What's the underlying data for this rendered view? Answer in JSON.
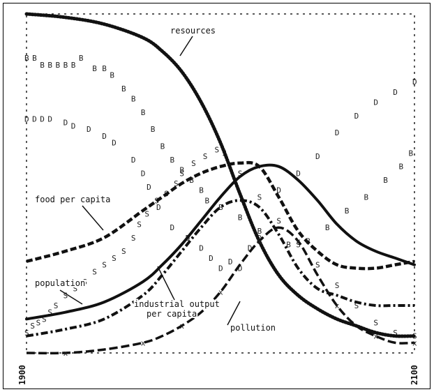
{
  "chart_data": {
    "type": "line",
    "title": "",
    "xlabel": "",
    "ylabel": "",
    "xlim": [
      1900,
      2100
    ],
    "ylim": [
      0,
      1
    ],
    "grid": false,
    "x_ticks": [
      "1900",
      "2100"
    ],
    "x": [
      1900,
      1920,
      1940,
      1960,
      1970,
      1980,
      1990,
      2000,
      2010,
      2020,
      2030,
      2040,
      2050,
      2060,
      2070,
      2080,
      2090,
      2100
    ],
    "series": [
      {
        "name": "resources",
        "style": "dotted",
        "values": [
          1.0,
          0.99,
          0.97,
          0.93,
          0.89,
          0.83,
          0.74,
          0.62,
          0.47,
          0.33,
          0.23,
          0.17,
          0.13,
          0.1,
          0.08,
          0.06,
          0.05,
          0.05
        ]
      },
      {
        "name": "food per capita",
        "style": "dashed",
        "values": [
          0.27,
          0.3,
          0.34,
          0.42,
          0.46,
          0.5,
          0.53,
          0.55,
          0.56,
          0.55,
          0.46,
          0.36,
          0.3,
          0.26,
          0.25,
          0.25,
          0.26,
          0.27
        ]
      },
      {
        "name": "population",
        "style": "solid",
        "values": [
          0.1,
          0.12,
          0.15,
          0.21,
          0.26,
          0.32,
          0.39,
          0.46,
          0.52,
          0.55,
          0.55,
          0.51,
          0.45,
          0.38,
          0.33,
          0.3,
          0.28,
          0.26
        ]
      },
      {
        "name": "industrial output per capita",
        "style": "dash-dot",
        "values": [
          0.05,
          0.07,
          0.1,
          0.17,
          0.23,
          0.3,
          0.37,
          0.43,
          0.45,
          0.43,
          0.35,
          0.25,
          0.19,
          0.17,
          0.15,
          0.14,
          0.14,
          0.14
        ]
      },
      {
        "name": "pollution",
        "style": "dash-x",
        "values": [
          0.0,
          0.0,
          0.01,
          0.03,
          0.05,
          0.08,
          0.12,
          0.18,
          0.26,
          0.33,
          0.37,
          0.33,
          0.23,
          0.14,
          0.08,
          0.05,
          0.03,
          0.03
        ]
      }
    ],
    "marker_series": [
      {
        "letter": "B",
        "points": [
          [
            1900,
            0.87
          ],
          [
            1904,
            0.87
          ],
          [
            1908,
            0.85
          ],
          [
            1912,
            0.85
          ],
          [
            1916,
            0.85
          ],
          [
            1920,
            0.85
          ],
          [
            1924,
            0.85
          ],
          [
            1928,
            0.87
          ],
          [
            1935,
            0.84
          ],
          [
            1940,
            0.84
          ],
          [
            1944,
            0.82
          ],
          [
            1950,
            0.78
          ],
          [
            1955,
            0.75
          ],
          [
            1960,
            0.71
          ],
          [
            1965,
            0.66
          ],
          [
            1970,
            0.61
          ],
          [
            1975,
            0.57
          ],
          [
            1980,
            0.54
          ],
          [
            1985,
            0.51
          ],
          [
            1990,
            0.48
          ],
          [
            1993,
            0.45
          ],
          [
            2000,
            0.43
          ],
          [
            2010,
            0.4
          ],
          [
            2020,
            0.36
          ],
          [
            2035,
            0.32
          ],
          [
            2045,
            0.33
          ],
          [
            2055,
            0.37
          ],
          [
            2065,
            0.42
          ],
          [
            2075,
            0.46
          ],
          [
            2085,
            0.51
          ],
          [
            2093,
            0.55
          ],
          [
            2098,
            0.59
          ]
        ]
      },
      {
        "letter": "D",
        "points": [
          [
            1900,
            0.69
          ],
          [
            1904,
            0.69
          ],
          [
            1908,
            0.69
          ],
          [
            1912,
            0.69
          ],
          [
            1920,
            0.68
          ],
          [
            1924,
            0.67
          ],
          [
            1932,
            0.66
          ],
          [
            1940,
            0.64
          ],
          [
            1945,
            0.62
          ],
          [
            1955,
            0.57
          ],
          [
            1960,
            0.53
          ],
          [
            1963,
            0.49
          ],
          [
            1968,
            0.43
          ],
          [
            1975,
            0.37
          ],
          [
            1983,
            0.34
          ],
          [
            1990,
            0.31
          ],
          [
            1995,
            0.28
          ],
          [
            2000,
            0.25
          ],
          [
            2005,
            0.27
          ],
          [
            2010,
            0.25
          ],
          [
            2015,
            0.31
          ],
          [
            2020,
            0.34
          ],
          [
            2030,
            0.48
          ],
          [
            2040,
            0.53
          ],
          [
            2050,
            0.58
          ],
          [
            2060,
            0.65
          ],
          [
            2070,
            0.7
          ],
          [
            2080,
            0.74
          ],
          [
            2090,
            0.77
          ],
          [
            2100,
            0.8
          ]
        ]
      },
      {
        "letter": "S",
        "points": [
          [
            1900,
            0.06
          ],
          [
            1903,
            0.08
          ],
          [
            1906,
            0.09
          ],
          [
            1909,
            0.1
          ],
          [
            1912,
            0.12
          ],
          [
            1915,
            0.14
          ],
          [
            1920,
            0.17
          ],
          [
            1925,
            0.19
          ],
          [
            1930,
            0.21
          ],
          [
            1935,
            0.24
          ],
          [
            1940,
            0.26
          ],
          [
            1945,
            0.28
          ],
          [
            1950,
            0.3
          ],
          [
            1955,
            0.34
          ],
          [
            1958,
            0.38
          ],
          [
            1962,
            0.41
          ],
          [
            1967,
            0.45
          ],
          [
            1972,
            0.47
          ],
          [
            1977,
            0.5
          ],
          [
            1980,
            0.53
          ],
          [
            1986,
            0.56
          ],
          [
            1992,
            0.58
          ],
          [
            1998,
            0.6
          ],
          [
            2002,
            0.59
          ],
          [
            2010,
            0.53
          ],
          [
            2020,
            0.46
          ],
          [
            2030,
            0.39
          ],
          [
            2040,
            0.32
          ],
          [
            2050,
            0.26
          ],
          [
            2060,
            0.2
          ],
          [
            2070,
            0.14
          ],
          [
            2080,
            0.09
          ],
          [
            2090,
            0.06
          ],
          [
            2100,
            0.05
          ]
        ]
      }
    ],
    "annotations": [
      {
        "text": "resources",
        "series": "resources"
      },
      {
        "text": "food per capita",
        "series": "food per capita"
      },
      {
        "text": "population",
        "series": "population"
      },
      {
        "text": "industrial output",
        "series": "industrial output per capita"
      },
      {
        "text": "per capita",
        "series": "industrial output per capita"
      },
      {
        "text": "pollution",
        "series": "pollution"
      }
    ]
  }
}
